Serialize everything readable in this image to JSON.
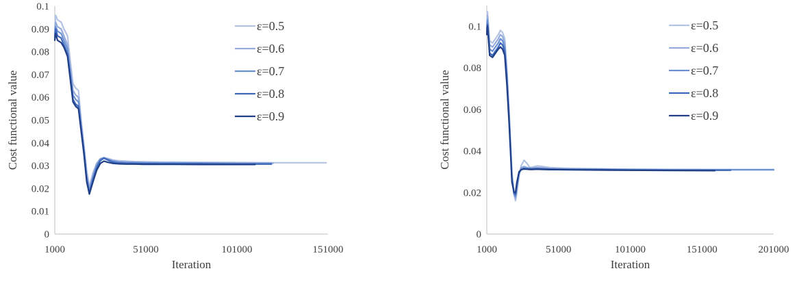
{
  "chart_data": [
    {
      "type": "line",
      "xlabel": "Iteration",
      "ylabel": "Cost functional value",
      "xlim": [
        1000,
        151000
      ],
      "ylim": [
        0,
        0.1
      ],
      "xticks": [
        "1000",
        "51000",
        "101000",
        "151000"
      ],
      "yticks": [
        "0",
        "0.01",
        "0.02",
        "0.03",
        "0.04",
        "0.05",
        "0.06",
        "0.07",
        "0.08",
        "0.09",
        "0.1"
      ],
      "legend_position": "top-right",
      "grid": false,
      "series": [
        {
          "name": "ε=0.5",
          "color": "#b4c3e4",
          "x": [
            1000,
            1500,
            2500,
            4500,
            6000,
            8000,
            9500,
            11000,
            12500,
            14000,
            15500,
            17000,
            18500,
            20000,
            22000,
            24000,
            26000,
            28000,
            30000,
            33000,
            36000,
            40000,
            45000,
            50000,
            60000,
            80000,
            100000,
            121000,
            150000
          ],
          "y": [
            0.09,
            0.096,
            0.094,
            0.093,
            0.09,
            0.087,
            0.076,
            0.066,
            0.064,
            0.063,
            0.05,
            0.039,
            0.028,
            0.021,
            0.027,
            0.031,
            0.033,
            0.0335,
            0.0332,
            0.0325,
            0.0322,
            0.032,
            0.0318,
            0.0317,
            0.0316,
            0.0315,
            0.0314,
            0.0313,
            0.0313
          ]
        },
        {
          "name": "ε=0.6",
          "color": "#95abdc",
          "x": [
            1000,
            1500,
            2500,
            4500,
            6000,
            8000,
            9500,
            11000,
            12500,
            14000,
            15500,
            17000,
            18500,
            20000,
            22000,
            24000,
            26000,
            28000,
            30000,
            33000,
            36000,
            40000,
            45000,
            50000,
            60000,
            80000,
            100000,
            121000
          ],
          "y": [
            0.088,
            0.093,
            0.091,
            0.09,
            0.087,
            0.083,
            0.073,
            0.063,
            0.061,
            0.06,
            0.048,
            0.038,
            0.026,
            0.02,
            0.026,
            0.031,
            0.033,
            0.0335,
            0.033,
            0.0322,
            0.0318,
            0.0316,
            0.0315,
            0.0314,
            0.0313,
            0.0312,
            0.0311,
            0.0311
          ]
        },
        {
          "name": "ε=0.7",
          "color": "#6a8fd2",
          "x": [
            1000,
            1500,
            2500,
            4500,
            6000,
            8000,
            9500,
            11000,
            12500,
            14000,
            15500,
            17000,
            18500,
            20000,
            22000,
            24000,
            26000,
            28000,
            30000,
            33000,
            36000,
            40000,
            45000,
            50000,
            60000,
            80000,
            100000,
            120000
          ],
          "y": [
            0.087,
            0.091,
            0.089,
            0.088,
            0.085,
            0.081,
            0.071,
            0.061,
            0.059,
            0.058,
            0.047,
            0.037,
            0.025,
            0.019,
            0.025,
            0.03,
            0.0328,
            0.0335,
            0.0328,
            0.032,
            0.0316,
            0.0314,
            0.0313,
            0.0312,
            0.0312,
            0.0311,
            0.031,
            0.031
          ]
        },
        {
          "name": "ε=0.8",
          "color": "#3c67bb",
          "x": [
            1000,
            1500,
            2500,
            4500,
            6000,
            8000,
            9500,
            11000,
            12500,
            14000,
            15500,
            17000,
            18500,
            20000,
            22000,
            24000,
            26000,
            28000,
            30000,
            33000,
            36000,
            40000,
            45000,
            50000,
            60000,
            80000,
            100000,
            120000
          ],
          "y": [
            0.086,
            0.09,
            0.087,
            0.086,
            0.083,
            0.079,
            0.069,
            0.059,
            0.057,
            0.056,
            0.046,
            0.036,
            0.024,
            0.018,
            0.024,
            0.029,
            0.0322,
            0.0333,
            0.0325,
            0.0315,
            0.0311,
            0.031,
            0.031,
            0.0309,
            0.0308,
            0.0308,
            0.0307,
            0.0307
          ]
        },
        {
          "name": "ε=0.9",
          "color": "#203f87",
          "x": [
            1000,
            1500,
            2500,
            4500,
            6000,
            8000,
            9500,
            11000,
            12500,
            14000,
            15500,
            17000,
            18500,
            20000,
            22000,
            24000,
            26000,
            28000,
            30000,
            33000,
            36000,
            40000,
            45000,
            50000,
            60000,
            80000,
            100000,
            111000
          ],
          "y": [
            0.085,
            0.088,
            0.085,
            0.084,
            0.082,
            0.078,
            0.068,
            0.058,
            0.056,
            0.055,
            0.045,
            0.035,
            0.023,
            0.0175,
            0.023,
            0.028,
            0.031,
            0.032,
            0.0315,
            0.031,
            0.0308,
            0.0307,
            0.0307,
            0.0306,
            0.0306,
            0.0305,
            0.0305,
            0.0305
          ]
        }
      ]
    },
    {
      "type": "line",
      "xlabel": "Iteration",
      "ylabel": "Cost functional value",
      "xlim": [
        1000,
        201000
      ],
      "ylim": [
        0,
        0.11
      ],
      "xticks": [
        "1000",
        "51000",
        "101000",
        "151000",
        "201000"
      ],
      "yticks": [
        "0",
        "0.02",
        "0.04",
        "0.06",
        "0.08",
        "0.1"
      ],
      "legend_position": "top-right",
      "grid": false,
      "series": [
        {
          "name": "ε=0.5",
          "color": "#b4c3e4",
          "x": [
            1000,
            1500,
            3000,
            5000,
            7000,
            9000,
            10500,
            12000,
            13500,
            15000,
            16500,
            17500,
            18500,
            20000,
            21000,
            22000,
            23500,
            25000,
            27000,
            29000,
            31000,
            33000,
            36000,
            40000,
            45000,
            50000,
            60000,
            80000,
            100000,
            130000,
            160000,
            201000
          ],
          "y": [
            0.1,
            0.107,
            0.093,
            0.092,
            0.094,
            0.096,
            0.098,
            0.097,
            0.094,
            0.08,
            0.06,
            0.045,
            0.03,
            0.02,
            0.016,
            0.02,
            0.028,
            0.033,
            0.0355,
            0.034,
            0.032,
            0.0322,
            0.0328,
            0.0325,
            0.032,
            0.0318,
            0.0316,
            0.0314,
            0.0312,
            0.0311,
            0.031,
            0.031
          ]
        },
        {
          "name": "ε=0.6",
          "color": "#95abdc",
          "x": [
            1000,
            1500,
            3000,
            5000,
            7000,
            9000,
            10500,
            12000,
            13500,
            15000,
            16500,
            17500,
            18500,
            20000,
            21000,
            22000,
            23500,
            25000,
            27000,
            29000,
            31000,
            33000,
            36000,
            40000,
            45000,
            50000,
            60000,
            80000,
            100000,
            130000,
            160000,
            201000
          ],
          "y": [
            0.099,
            0.105,
            0.091,
            0.09,
            0.092,
            0.094,
            0.096,
            0.095,
            0.092,
            0.078,
            0.058,
            0.043,
            0.028,
            0.019,
            0.017,
            0.022,
            0.029,
            0.032,
            0.0325,
            0.032,
            0.0318,
            0.0318,
            0.032,
            0.0318,
            0.0316,
            0.0315,
            0.0314,
            0.0313,
            0.0312,
            0.0311,
            0.031,
            0.031
          ]
        },
        {
          "name": "ε=0.7",
          "color": "#6a8fd2",
          "x": [
            1000,
            1500,
            3000,
            5000,
            7000,
            9000,
            10500,
            12000,
            13500,
            15000,
            16500,
            17500,
            18500,
            20000,
            21000,
            22000,
            23500,
            25000,
            27000,
            29000,
            31000,
            33000,
            36000,
            40000,
            45000,
            50000,
            60000,
            80000,
            100000,
            130000,
            160000,
            201000
          ],
          "y": [
            0.098,
            0.103,
            0.089,
            0.088,
            0.09,
            0.092,
            0.094,
            0.093,
            0.09,
            0.076,
            0.057,
            0.042,
            0.027,
            0.019,
            0.018,
            0.023,
            0.029,
            0.0315,
            0.0318,
            0.0316,
            0.0315,
            0.0315,
            0.0316,
            0.0315,
            0.0314,
            0.0313,
            0.0312,
            0.0311,
            0.031,
            0.0309,
            0.0309,
            0.0309
          ]
        },
        {
          "name": "ε=0.8",
          "color": "#3c67bb",
          "x": [
            1000,
            1500,
            3000,
            5000,
            7000,
            9000,
            10500,
            12000,
            13500,
            15000,
            16500,
            17500,
            18500,
            20000,
            21000,
            22000,
            23500,
            25000,
            27000,
            29000,
            31000,
            33000,
            36000,
            40000,
            45000,
            50000,
            60000,
            80000,
            100000,
            130000,
            160000,
            171000
          ],
          "y": [
            0.097,
            0.101,
            0.087,
            0.086,
            0.088,
            0.09,
            0.092,
            0.091,
            0.088,
            0.074,
            0.055,
            0.041,
            0.026,
            0.02,
            0.019,
            0.024,
            0.0295,
            0.031,
            0.0315,
            0.0314,
            0.0313,
            0.0313,
            0.0314,
            0.0313,
            0.0312,
            0.0311,
            0.031,
            0.031,
            0.0308,
            0.0307,
            0.0307,
            0.0307
          ]
        },
        {
          "name": "ε=0.9",
          "color": "#203f87",
          "x": [
            1000,
            1500,
            3000,
            5000,
            7000,
            9000,
            10500,
            12000,
            13500,
            15000,
            16500,
            17500,
            18500,
            20000,
            21000,
            22000,
            23500,
            25000,
            27000,
            29000,
            31000,
            33000,
            36000,
            40000,
            45000,
            50000,
            60000,
            80000,
            100000,
            130000,
            160000
          ],
          "y": [
            0.096,
            0.1,
            0.086,
            0.085,
            0.087,
            0.089,
            0.09,
            0.089,
            0.086,
            0.072,
            0.054,
            0.04,
            0.025,
            0.02,
            0.02,
            0.025,
            0.03,
            0.031,
            0.0313,
            0.0312,
            0.0311,
            0.0311,
            0.0312,
            0.0311,
            0.031,
            0.031,
            0.0309,
            0.0308,
            0.0307,
            0.0306,
            0.0305
          ]
        }
      ]
    }
  ]
}
